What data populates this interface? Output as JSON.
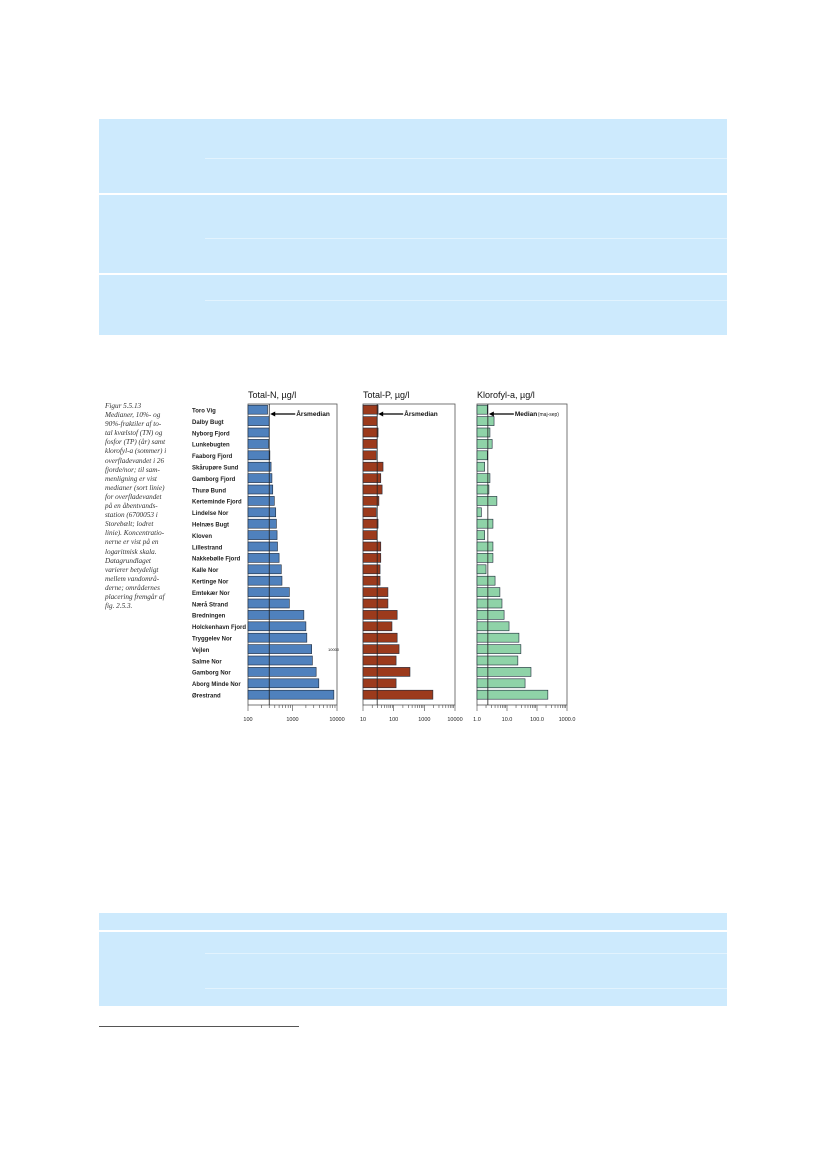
{
  "caption": {
    "lines": [
      "Figur 5.5.13",
      "Medianer, 10%- og",
      "90%-fraktiler af to-",
      "tal kvælstof (TN) og",
      "fosfor (TP) (år) samt",
      "klorofyl-a (sommer) i",
      "overfladevandet i 26",
      "fjorde/nor; til sam-",
      "menligning er vist",
      "medianer (sort linie)",
      "for overfladevandet",
      "på en åbentvands-",
      "station (6700053 i",
      "Storebælt; lodret",
      "linie). Koncentratio-",
      "nerne er vist på en",
      "logaritmisk skala.",
      "Datagrundlaget",
      "varierer betydeligt",
      "mellem vandområ-",
      "derne; områdernes",
      "placering fremgår af",
      "fig. 2.5.3."
    ]
  },
  "colors": {
    "box": "#cdeafd",
    "n_bar": "#4f81bd",
    "p_bar": "#9c3a1c",
    "chl_bar": "#8fd3a8"
  },
  "chart_data": [
    {
      "type": "bar",
      "orientation": "horizontal",
      "title": "Total-N, µg/l",
      "scale": "log",
      "xlim": [
        100,
        10000
      ],
      "ticks": [
        "100",
        "1000",
        "10000"
      ],
      "tick_values": [
        100,
        1000,
        10000
      ],
      "reference_median": 300,
      "annotation": "Årsmedian",
      "extra_label": "10000",
      "categories": [
        "Toro Vig",
        "Dalby Bugt",
        "Nyborg Fjord",
        "Lunkebugten",
        "Faaborg Fjord",
        "Skårupøre Sund",
        "Gamborg Fjord",
        "Thurø Bund",
        "Kerteminde Fjord",
        "Lindelse Nor",
        "Helnæs Bugt",
        "Kloven",
        "Lillestrand",
        "Nakkebølle Fjord",
        "Kalle Nor",
        "Kertinge Nor",
        "Emtekær Nor",
        "Nærå Strand",
        "Bredningen",
        "Holckenhavn Fjord",
        "Tryggelev Nor",
        "Vejlen",
        "Salme Nor",
        "Gamborg Nor",
        "Aborg Minde Nor",
        "Ørestrand"
      ],
      "values": [
        275,
        300,
        300,
        290,
        310,
        330,
        345,
        360,
        390,
        420,
        435,
        450,
        460,
        500,
        560,
        580,
        850,
        850,
        1800,
        2000,
        2100,
        2700,
        2800,
        3400,
        3900,
        8500
      ]
    },
    {
      "type": "bar",
      "orientation": "horizontal",
      "title": "Total-P, µg/l",
      "scale": "log",
      "xlim": [
        10,
        10000
      ],
      "ticks": [
        "10",
        "100",
        "1000",
        "10000"
      ],
      "tick_values": [
        10,
        100,
        1000,
        10000
      ],
      "reference_median": 29,
      "annotation": "Årsmedian",
      "values": [
        31,
        29,
        31,
        29,
        27,
        45,
        38,
        42,
        33,
        27,
        31,
        29,
        38,
        38,
        36,
        36,
        65,
        65,
        130,
        88,
        130,
        150,
        120,
        340,
        120,
        1900
      ]
    },
    {
      "type": "bar",
      "orientation": "horizontal",
      "title": "Klorofyl-a, µg/l",
      "scale": "log",
      "xlim": [
        1,
        1000
      ],
      "ticks": [
        "1.0",
        "10.0",
        "100.0",
        "1000.0"
      ],
      "tick_values": [
        1,
        10,
        100,
        1000
      ],
      "reference_median": 2.3,
      "annotation_bold": "Median",
      "annotation_small": "(maj-sep)",
      "values": [
        2.2,
        3.7,
        2.7,
        3.2,
        2.2,
        1.8,
        2.7,
        2.5,
        4.6,
        1.4,
        3.4,
        1.8,
        3.4,
        3.4,
        2.0,
        4.0,
        5.8,
        6.8,
        8.0,
        11.7,
        25,
        29,
        23,
        63,
        40,
        230
      ]
    }
  ]
}
